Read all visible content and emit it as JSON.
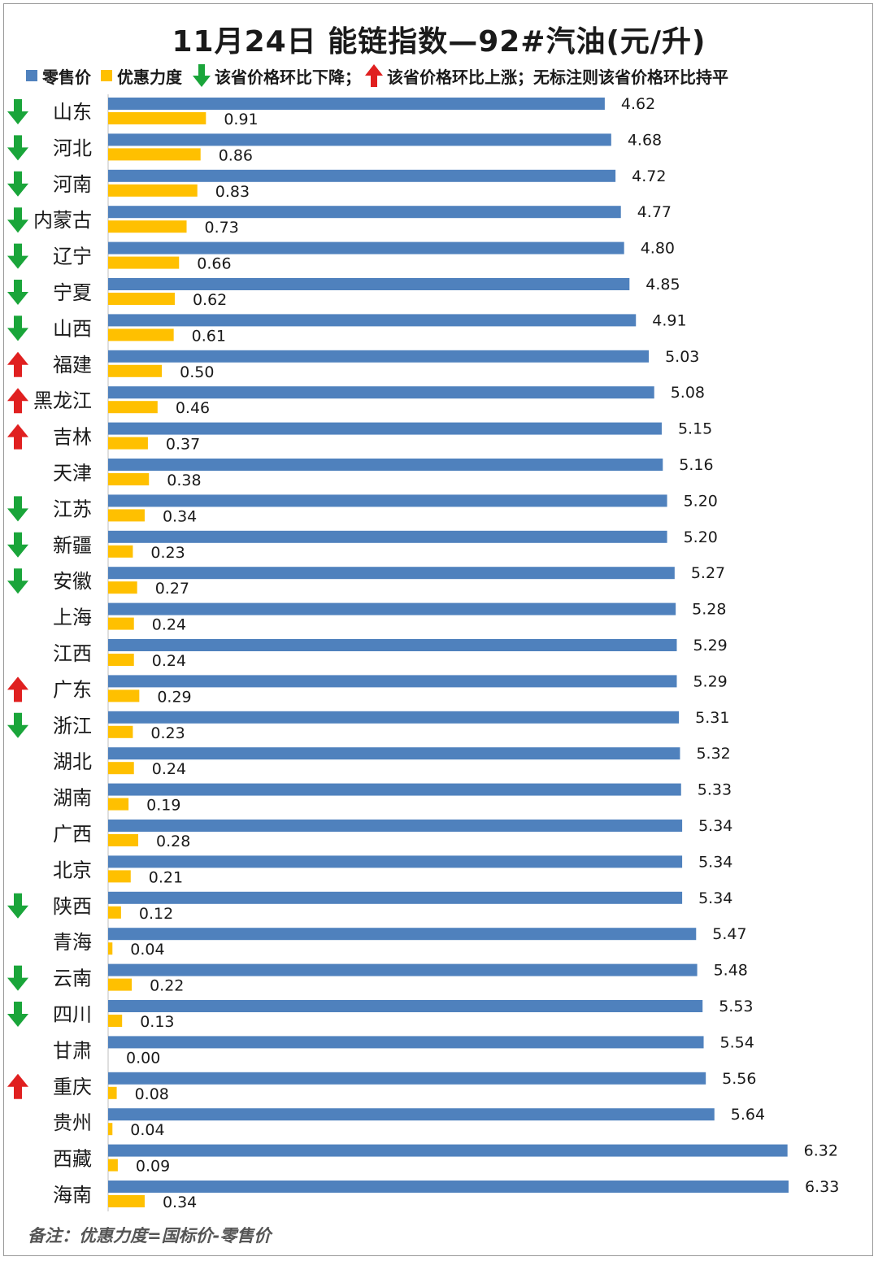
{
  "title": "11月24日 能链指数—92#汽油(元/升)",
  "legend": {
    "retail_label": "零售价",
    "discount_label": "优惠力度",
    "down_label": "该省价格环比下降；",
    "up_label": "该省价格环比上涨；无标注则该省价格环比持平"
  },
  "note": "备注：优惠力度=国标价-零售价",
  "colors": {
    "retail": "#4f81bd",
    "discount": "#ffc000",
    "down": "#1aa53a",
    "up": "#e02020"
  },
  "chart_data": {
    "type": "bar",
    "orientation": "horizontal",
    "categories": [
      "山东",
      "河北",
      "河南",
      "内蒙古",
      "辽宁",
      "宁夏",
      "山西",
      "福建",
      "黑龙江",
      "吉林",
      "天津",
      "江苏",
      "新疆",
      "安徽",
      "上海",
      "江西",
      "广东",
      "浙江",
      "湖北",
      "湖南",
      "广西",
      "北京",
      "陕西",
      "青海",
      "云南",
      "四川",
      "甘肃",
      "重庆",
      "贵州",
      "西藏",
      "海南"
    ],
    "series": [
      {
        "name": "零售价",
        "values": [
          4.62,
          4.68,
          4.72,
          4.77,
          4.8,
          4.85,
          4.91,
          5.03,
          5.08,
          5.15,
          5.16,
          5.2,
          5.2,
          5.27,
          5.28,
          5.29,
          5.29,
          5.31,
          5.32,
          5.33,
          5.34,
          5.34,
          5.34,
          5.47,
          5.48,
          5.53,
          5.54,
          5.56,
          5.64,
          6.32,
          6.33
        ]
      },
      {
        "name": "优惠力度",
        "values": [
          0.91,
          0.86,
          0.83,
          0.73,
          0.66,
          0.62,
          0.61,
          0.5,
          0.46,
          0.37,
          0.38,
          0.34,
          0.23,
          0.27,
          0.24,
          0.24,
          0.29,
          0.23,
          0.24,
          0.19,
          0.28,
          0.21,
          0.12,
          0.04,
          0.22,
          0.13,
          0.0,
          0.08,
          0.04,
          0.09,
          0.34
        ]
      }
    ],
    "trend": [
      "down",
      "down",
      "down",
      "down",
      "down",
      "down",
      "down",
      "up",
      "up",
      "up",
      "flat",
      "down",
      "down",
      "down",
      "flat",
      "flat",
      "up",
      "down",
      "flat",
      "flat",
      "flat",
      "flat",
      "down",
      "flat",
      "down",
      "down",
      "flat",
      "up",
      "flat",
      "flat",
      "flat"
    ],
    "value_labels": {
      "retail": [
        "4.62",
        "4.68",
        "4.72",
        "4.77",
        "4.80",
        "4.85",
        "4.91",
        "5.03",
        "5.08",
        "5.15",
        "5.16",
        "5.20",
        "5.20",
        "5.27",
        "5.28",
        "5.29",
        "5.29",
        "5.31",
        "5.32",
        "5.33",
        "5.34",
        "5.34",
        "5.34",
        "5.47",
        "5.48",
        "5.53",
        "5.54",
        "5.56",
        "5.64",
        "6.32",
        "6.33"
      ],
      "discount": [
        "0.91",
        "0.86",
        "0.83",
        "0.73",
        "0.66",
        "0.62",
        "0.61",
        "0.50",
        "0.46",
        "0.37",
        "0.38",
        "0.34",
        "0.23",
        "0.27",
        "0.24",
        "0.24",
        "0.29",
        "0.23",
        "0.24",
        "0.19",
        "0.28",
        "0.21",
        "0.12",
        "0.04",
        "0.22",
        "0.13",
        "0.00",
        "0.08",
        "0.04",
        "0.09",
        "0.34"
      ]
    },
    "xlim": [
      0,
      6.33
    ],
    "grid": false
  }
}
